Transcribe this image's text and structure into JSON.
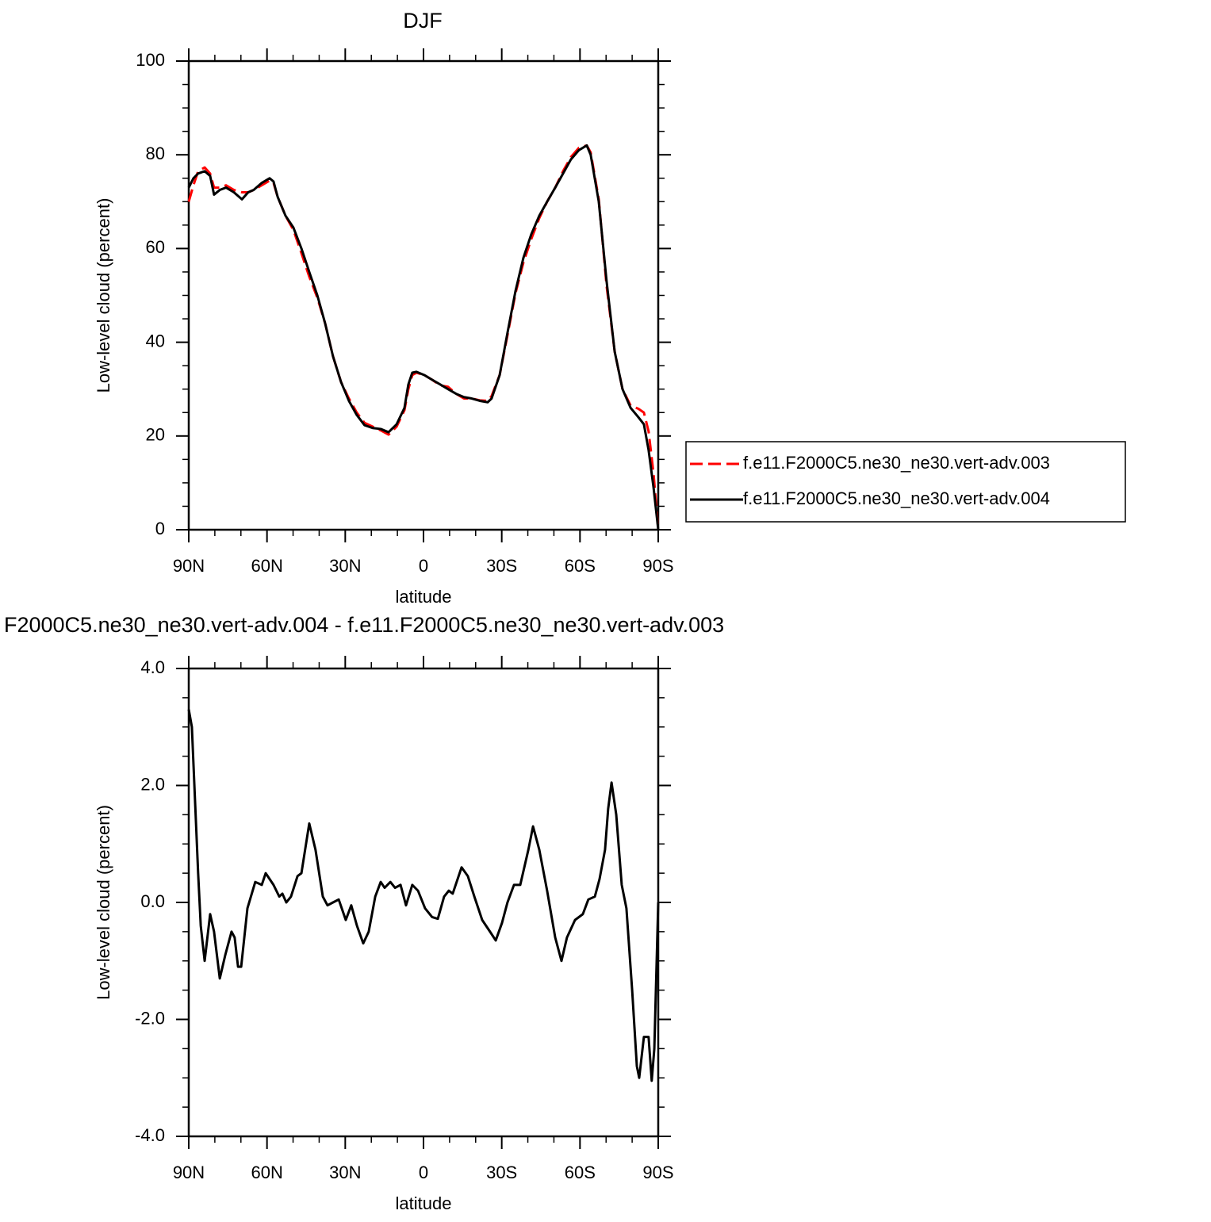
{
  "chart_data": [
    {
      "type": "line",
      "title": "DJF",
      "xlabel": "latitude",
      "ylabel": "Low-level cloud (percent)",
      "x": [
        90,
        88.2,
        86.4,
        83.9,
        81.8,
        80.3,
        78.1,
        75.7,
        72.7,
        69.6,
        67.2,
        65.1,
        62.0,
        59.0,
        57.5,
        55.9,
        52.9,
        49.9,
        46.8,
        43.8,
        40.7,
        37.7,
        34.7,
        31.6,
        28.6,
        25.6,
        22.6,
        19.5,
        16.4,
        13.4,
        10.3,
        7.3,
        5.8,
        4.3,
        2.7,
        -0.3,
        -3.3,
        -6.4,
        -9.4,
        -12.5,
        -15.5,
        -18.5,
        -21.6,
        -24.6,
        -26.1,
        -29.2,
        -32.2,
        -35.3,
        -38.3,
        -41.3,
        -44.4,
        -47.4,
        -50.5,
        -53.5,
        -56.5,
        -59.6,
        -62.6,
        -64.1,
        -67.2,
        -70.2,
        -73.3,
        -76.3,
        -79.4,
        -82.4,
        -84.5,
        -86.3,
        -88.2,
        -90
      ],
      "series": [
        {
          "name": "f.e11.F2000C5.ne30_ne30.vert-adv.003",
          "color": "#ff0000",
          "dashed": true,
          "values": [
            70,
            73.5,
            76.5,
            77.3,
            76,
            73,
            73,
            73.5,
            72.5,
            72,
            72,
            72.5,
            73.5,
            74.5,
            74,
            71,
            67,
            64,
            59,
            54,
            49.5,
            44,
            37,
            31.5,
            28,
            25,
            22.8,
            22,
            21.2,
            20.3,
            22,
            25.5,
            30,
            33,
            33.5,
            33,
            32,
            30.8,
            30.5,
            29,
            28,
            28,
            27.6,
            27.5,
            28.5,
            33,
            41.5,
            50.5,
            57,
            62,
            66.5,
            70,
            73,
            76.5,
            79.5,
            81.5,
            82,
            80.5,
            70.5,
            52,
            38,
            30,
            26.5,
            25.8,
            25,
            21,
            12,
            0
          ]
        },
        {
          "name": "f.e11.F2000C5.ne30_ne30.vert-adv.004",
          "color": "#000000",
          "dashed": false,
          "values": [
            73,
            75,
            76,
            76.5,
            75.5,
            71.5,
            72.5,
            73,
            72,
            70.5,
            72,
            72.5,
            74,
            75,
            74.3,
            71,
            67,
            64.5,
            60,
            55,
            50,
            44,
            37,
            31.5,
            27.5,
            24.5,
            22.3,
            21.7,
            21.5,
            20.8,
            22.5,
            26,
            31,
            33.5,
            33.7,
            33,
            32,
            31,
            30,
            29,
            28.3,
            28,
            27.5,
            27.2,
            28,
            33,
            42,
            51,
            58,
            63,
            67,
            70,
            73,
            76,
            79,
            81,
            82,
            80,
            70,
            53,
            38,
            30,
            26,
            24,
            22.5,
            17,
            9,
            0
          ]
        }
      ],
      "xlim": [
        90,
        -90
      ],
      "xticks": [
        {
          "value": 90,
          "label": "90N"
        },
        {
          "value": 60,
          "label": "60N"
        },
        {
          "value": 30,
          "label": "30N"
        },
        0,
        {
          "value": -30,
          "label": "30S"
        },
        {
          "value": -60,
          "label": "60S"
        },
        {
          "value": -90,
          "label": "90S"
        }
      ],
      "ylim": [
        0,
        100
      ],
      "yticks": [
        0,
        20,
        40,
        60,
        80,
        100
      ],
      "grid": false,
      "legend": "right"
    },
    {
      "type": "line",
      "title": "F2000C5.ne30_ne30.vert-adv.004 - f.e11.F2000C5.ne30_ne30.vert-adv.003",
      "xlabel": "latitude",
      "ylabel": "Low-level cloud (percent)",
      "x": [
        90,
        88.8,
        86.4,
        85.4,
        83.9,
        81.8,
        80.3,
        78.1,
        76.0,
        73.6,
        72.4,
        71.1,
        69.9,
        67.5,
        64.5,
        62.0,
        60.5,
        57.5,
        55.3,
        54.1,
        52.6,
        50.8,
        48.3,
        46.8,
        43.8,
        41.4,
        38.6,
        36.8,
        34.7,
        32.5,
        29.8,
        27.7,
        25.5,
        23.1,
        21.0,
        18.5,
        16.4,
        14.9,
        12.7,
        10.9,
        8.8,
        6.7,
        4.3,
        2.1,
        -0.6,
        -3.3,
        -5.5,
        -7.9,
        -9.7,
        -11.2,
        -14.6,
        -17.0,
        -19.5,
        -22.5,
        -25.5,
        -27.7,
        -30.1,
        -32.2,
        -34.7,
        -37.1,
        -40.2,
        -42.0,
        -44.4,
        -47.4,
        -50.5,
        -52.9,
        -55.0,
        -58.1,
        -61.1,
        -63.2,
        -65.7,
        -67.5,
        -69.6,
        -70.8,
        -72.1,
        -73.9,
        -76.0,
        -77.8,
        -80.0,
        -81.8,
        -82.7,
        -84.5,
        -86.3,
        -87.5,
        -88.5,
        -90.0
      ],
      "series": [
        {
          "name": null,
          "color": "#000000",
          "dashed": false,
          "values": [
            3.3,
            3.0,
            0.5,
            -0.4,
            -1.0,
            -0.2,
            -0.5,
            -1.3,
            -0.9,
            -0.5,
            -0.6,
            -1.1,
            -1.1,
            -0.1,
            0.35,
            0.3,
            0.5,
            0.3,
            0.1,
            0.15,
            0.0,
            0.1,
            0.45,
            0.5,
            1.35,
            0.9,
            0.1,
            -0.05,
            0.0,
            0.05,
            -0.3,
            -0.05,
            -0.4,
            -0.7,
            -0.5,
            0.1,
            0.35,
            0.25,
            0.35,
            0.25,
            0.3,
            -0.05,
            0.3,
            0.2,
            -0.1,
            -0.25,
            -0.28,
            0.1,
            0.2,
            0.15,
            0.6,
            0.45,
            0.1,
            -0.3,
            -0.5,
            -0.65,
            -0.35,
            0.0,
            0.3,
            0.3,
            0.9,
            1.3,
            0.9,
            0.2,
            -0.6,
            -1.0,
            -0.6,
            -0.3,
            -0.2,
            0.05,
            0.1,
            0.4,
            0.9,
            1.6,
            2.05,
            1.5,
            0.3,
            -0.1,
            -1.5,
            -2.8,
            -3.0,
            -2.3,
            -2.3,
            -3.05,
            -2.5,
            0.0
          ]
        }
      ],
      "xlim": [
        90,
        -90
      ],
      "xticks": [
        {
          "value": 90,
          "label": "90N"
        },
        {
          "value": 60,
          "label": "60N"
        },
        {
          "value": 30,
          "label": "30N"
        },
        0,
        {
          "value": -30,
          "label": "30S"
        },
        {
          "value": -60,
          "label": "60S"
        },
        {
          "value": -90,
          "label": "90S"
        }
      ],
      "ylim": [
        -4,
        4
      ],
      "yticks": [
        {
          "value": -4,
          "label": "-4.0"
        },
        {
          "value": -2,
          "label": "-2.0"
        },
        {
          "value": 0,
          "label": "0.0"
        },
        {
          "value": 2,
          "label": "2.0"
        },
        {
          "value": 4,
          "label": "4.0"
        }
      ],
      "grid": false
    }
  ]
}
